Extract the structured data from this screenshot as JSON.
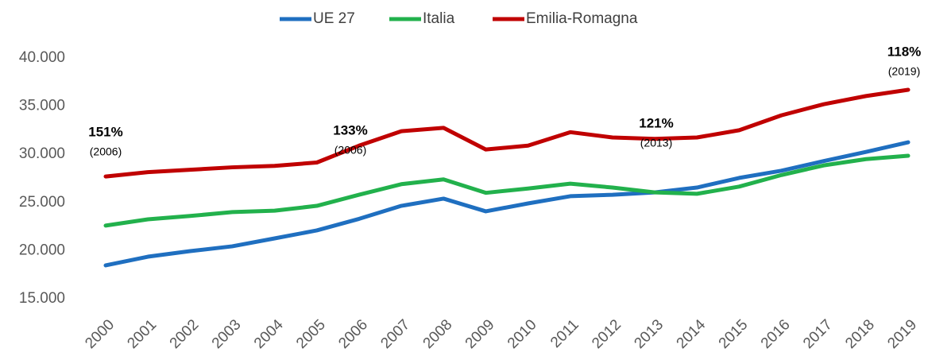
{
  "chart_data": {
    "type": "line",
    "categories": [
      "2000",
      "2001",
      "2002",
      "2003",
      "2004",
      "2005",
      "2006",
      "2007",
      "2008",
      "2009",
      "2010",
      "2011",
      "2012",
      "2013",
      "2014",
      "2015",
      "2016",
      "2017",
      "2018",
      "2019"
    ],
    "series": [
      {
        "name": "UE 27",
        "color": "#1f6fc0",
        "values": [
          18470,
          19370,
          19950,
          20450,
          21270,
          22100,
          23300,
          24650,
          25400,
          24080,
          24900,
          25650,
          25800,
          26050,
          26550,
          27550,
          28300,
          29300,
          30250,
          31250
        ]
      },
      {
        "name": "Italia",
        "color": "#22b14c",
        "values": [
          22600,
          23250,
          23600,
          24000,
          24150,
          24650,
          25800,
          26900,
          27400,
          26000,
          26450,
          26950,
          26550,
          26050,
          25900,
          26650,
          27850,
          28850,
          29500,
          29850
        ]
      },
      {
        "name": "Emilia-Romagna",
        "color": "#c00000",
        "values": [
          27700,
          28150,
          28400,
          28650,
          28800,
          29150,
          30900,
          32400,
          32750,
          30500,
          30900,
          32300,
          31750,
          31600,
          31750,
          32500,
          34050,
          35200,
          36050,
          36700
        ]
      }
    ],
    "ylim": [
      15000,
      40000
    ],
    "yticks": [
      {
        "value": 15000,
        "label": "15.000"
      },
      {
        "value": 20000,
        "label": "20.000"
      },
      {
        "value": 25000,
        "label": "25.000"
      },
      {
        "value": 30000,
        "label": "30.000"
      },
      {
        "value": 35000,
        "label": "35.000"
      },
      {
        "value": 40000,
        "label": "40.000"
      }
    ],
    "grid": false,
    "legend": "top",
    "annotations": [
      {
        "label": "151%",
        "note": "(2006)"
      },
      {
        "label": "133%",
        "note": "(2006)"
      },
      {
        "label": "121%",
        "note": "(2013)"
      },
      {
        "label": "118%",
        "note": "(2019)"
      }
    ]
  }
}
